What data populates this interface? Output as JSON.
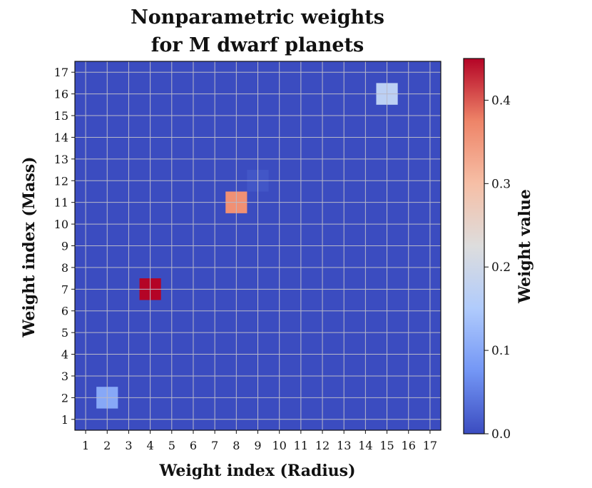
{
  "chart_data": {
    "type": "heatmap",
    "title_lines": [
      "Nonparametric weights",
      "for M dwarf planets"
    ],
    "xlabel": "Weight index (Radius)",
    "ylabel": "Weight index (Mass)",
    "x_ticks": [
      1,
      2,
      3,
      4,
      5,
      6,
      7,
      8,
      9,
      10,
      11,
      12,
      13,
      14,
      15,
      16,
      17
    ],
    "y_ticks": [
      1,
      2,
      3,
      4,
      5,
      6,
      7,
      8,
      9,
      10,
      11,
      12,
      13,
      14,
      15,
      16,
      17
    ],
    "grid": true,
    "colormap": "coolwarm",
    "vmin": 0.0,
    "vmax": 0.45,
    "background_value": 0.0,
    "cells": [
      {
        "x": 2,
        "y": 2,
        "value": 0.1
      },
      {
        "x": 4,
        "y": 7,
        "value": 0.45
      },
      {
        "x": 8,
        "y": 11,
        "value": 0.36
      },
      {
        "x": 9,
        "y": 12,
        "value": 0.01
      },
      {
        "x": 15,
        "y": 16,
        "value": 0.17
      }
    ],
    "colorbar": {
      "label": "Weight value",
      "ticks": [
        0.0,
        0.1,
        0.2,
        0.3,
        0.4
      ],
      "tick_labels": [
        "0.0",
        "0.1",
        "0.2",
        "0.3",
        "0.4"
      ],
      "colors": [
        "#3b4cc0",
        "#7396f5",
        "#b0cbfc",
        "#dddddd",
        "#f6bfa6",
        "#ee8468",
        "#b40426"
      ]
    }
  }
}
